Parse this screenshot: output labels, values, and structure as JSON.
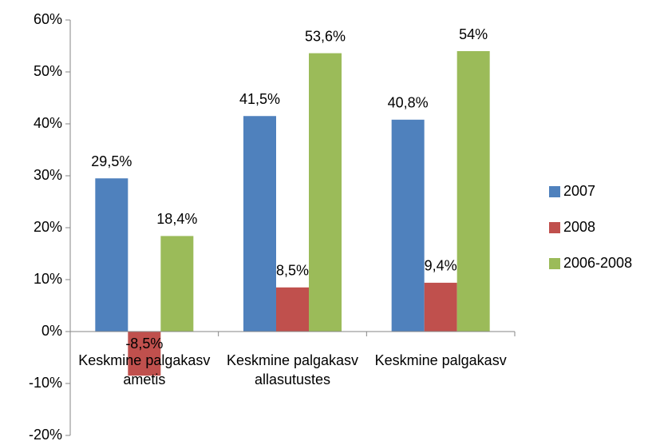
{
  "chart_data": {
    "type": "bar",
    "categories": [
      "Keskmine palgakasv ametis",
      "Keskmine palgakasv allasutustes",
      "Keskmine palgakasv"
    ],
    "series": [
      {
        "name": "2007",
        "color": "#4f81bd",
        "values": [
          29.5,
          41.5,
          40.8
        ],
        "value_labels": [
          "29,5%",
          "41,5%",
          "40,8%"
        ]
      },
      {
        "name": "2008",
        "color": "#c0504d",
        "values": [
          -8.5,
          8.5,
          9.4
        ],
        "value_labels": [
          "-8,5%",
          "8,5%",
          "9,4%"
        ]
      },
      {
        "name": "2006-2008",
        "color": "#9bbb59",
        "values": [
          18.4,
          53.6,
          54
        ],
        "value_labels": [
          "18,4%",
          "53,6%",
          "54%"
        ]
      }
    ],
    "ylim": [
      -20,
      60
    ],
    "yticks": [
      {
        "value": -20,
        "label": "-20%"
      },
      {
        "value": -10,
        "label": "-10%"
      },
      {
        "value": 0,
        "label": "0%"
      },
      {
        "value": 10,
        "label": "10%"
      },
      {
        "value": 20,
        "label": "20%"
      },
      {
        "value": 30,
        "label": "30%"
      },
      {
        "value": 40,
        "label": "40%"
      },
      {
        "value": 50,
        "label": "50%"
      },
      {
        "value": 60,
        "label": "60%"
      }
    ],
    "grid": false,
    "legend": "right"
  }
}
